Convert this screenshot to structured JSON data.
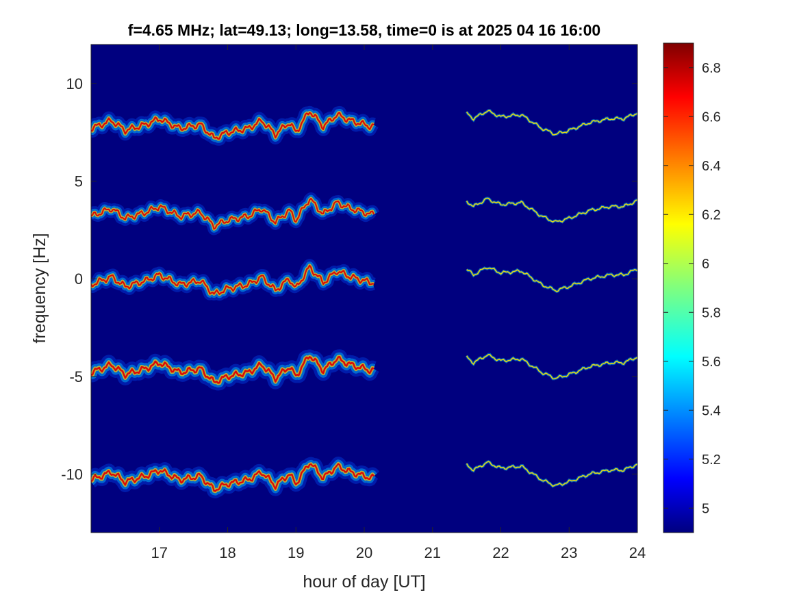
{
  "chart_data": {
    "type": "heatmap",
    "title": "f=4.65 MHz;  lat=49.13; long=13.58, time=0 is at 2025 04 16 16:00",
    "xlabel": "hour of day [UT]",
    "ylabel": "frequency [Hz]",
    "xlim": [
      16.0,
      24.0
    ],
    "ylim": [
      -13.0,
      12.0
    ],
    "x_ticks": [
      "17",
      "18",
      "19",
      "20",
      "21",
      "22",
      "23",
      "24"
    ],
    "x_tick_values": [
      17,
      18,
      19,
      20,
      21,
      22,
      23,
      24
    ],
    "y_ticks": [
      "10",
      "5",
      "0",
      "-5",
      "-10"
    ],
    "y_tick_values": [
      10,
      5,
      0,
      -5,
      -10
    ],
    "colorbar": {
      "colormap": "jet",
      "clim": [
        4.9,
        6.9
      ],
      "ticks": [
        "6.8",
        "6.6",
        "6.4",
        "6.2",
        "6",
        "5.8",
        "5.6",
        "5.4",
        "5.2",
        "5"
      ],
      "tick_values": [
        6.8,
        6.6,
        6.4,
        6.2,
        6.0,
        5.8,
        5.6,
        5.4,
        5.2,
        5.0
      ]
    },
    "background_color": "#00007f",
    "traces": {
      "trace_offsets_hz": [
        8,
        3.5,
        0,
        -4.5,
        -10
      ],
      "trace_strength": [
        0.9,
        0.82,
        0.86,
        1.0,
        0.95
      ],
      "gap_hours": [
        20.15,
        21.35
      ],
      "shape_hour": [
        16.0,
        16.3,
        16.5,
        16.8,
        17.0,
        17.3,
        17.6,
        17.8,
        18.0,
        18.3,
        18.5,
        18.7,
        18.9,
        19.0,
        19.2,
        19.4,
        19.6,
        19.8,
        20.1,
        21.35,
        21.6,
        21.8,
        22.0,
        22.3,
        22.6,
        22.8,
        23.0,
        23.3,
        23.6,
        23.8,
        24.0
      ],
      "shape_offset_hz": [
        -0.3,
        0.1,
        -0.4,
        -0.1,
        0.2,
        -0.3,
        -0.1,
        -0.8,
        -0.5,
        -0.3,
        0.1,
        -0.6,
        0.0,
        -0.5,
        0.6,
        -0.2,
        0.4,
        0.1,
        -0.2,
        0.9,
        0.2,
        0.6,
        0.3,
        0.4,
        -0.3,
        -0.6,
        -0.4,
        0.0,
        0.2,
        0.2,
        0.5
      ]
    }
  }
}
